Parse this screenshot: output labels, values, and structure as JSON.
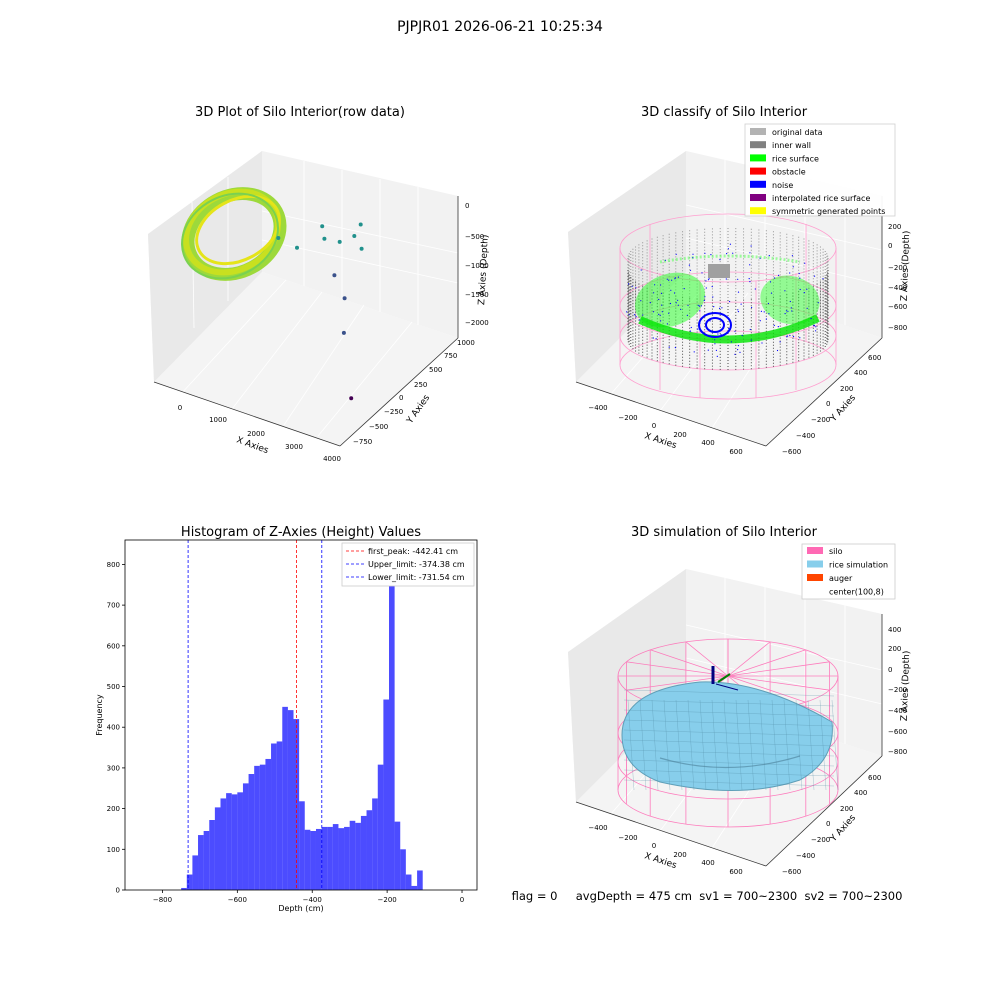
{
  "figure": {
    "suptitle": "PJPJR01 2026-06-21 10:25:34",
    "status_line": "flag = 0     avgDepth = 475 cm  sv1 = 700~2300  sv2 = 700~2300"
  },
  "chart_data": [
    {
      "type": "scatter",
      "title": "3D Plot of Silo Interior(row data)",
      "xlabel": "X Axies",
      "ylabel": "Y Axies",
      "zlabel": "Z Axies (Depth)",
      "x_ticks": [
        "0",
        "1000",
        "2000",
        "3000",
        "4000"
      ],
      "y_ticks": [
        "−750",
        "−500",
        "−250",
        "0",
        "250",
        "500",
        "750",
        "1000"
      ],
      "z_ticks": [
        "0",
        "−500",
        "−1000",
        "−1500",
        "−2000"
      ],
      "xlim": [
        -400,
        4100
      ],
      "ylim": [
        -800,
        1050
      ],
      "zlim": [
        -2350,
        150
      ],
      "colormap": [
        "#440154",
        "#3b528b",
        "#21918c",
        "#5ec962",
        "#fde725"
      ],
      "points": [
        {
          "x": 3600,
          "y": -300,
          "z": -2150
        },
        {
          "x": 2650,
          "y": 200,
          "z": -1750
        },
        {
          "x": 2050,
          "y": 600,
          "z": -1700
        },
        {
          "x": 1650,
          "y": 700,
          "z": -1500
        },
        {
          "x": 1100,
          "y": 900,
          "z": -1200
        },
        {
          "x": 1900,
          "y": 850,
          "z": -900
        },
        {
          "x": 1700,
          "y": 750,
          "z": -950
        },
        {
          "x": 2000,
          "y": 900,
          "z": -1150
        },
        {
          "x": 900,
          "y": 600,
          "z": -1100
        },
        {
          "x": 1200,
          "y": 800,
          "z": -850
        },
        {
          "x": 1900,
          "y": 950,
          "z": -800
        },
        {
          "x": 600,
          "y": 500,
          "z": -900
        }
      ]
    },
    {
      "type": "scatter",
      "title": "3D classify of Silo Interior",
      "xlabel": "X Axies",
      "ylabel": "Y Axies",
      "zlabel": "Z Axies (Depth)",
      "x_ticks": [
        "−400",
        "−200",
        "0",
        "200",
        "400",
        "600"
      ],
      "y_ticks": [
        "−600",
        "−400",
        "−200",
        "0",
        "200",
        "400",
        "600"
      ],
      "z_ticks": [
        "200",
        "0",
        "−200",
        "−400",
        "−600",
        "−800"
      ],
      "legend": [
        {
          "label": "original data",
          "color": "#b3b3b3"
        },
        {
          "label": "inner wall",
          "color": "#808080"
        },
        {
          "label": "rice surface",
          "color": "#00ff00"
        },
        {
          "label": "obstacle",
          "color": "#ff0000"
        },
        {
          "label": "noise",
          "color": "#0000ff"
        },
        {
          "label": "interpolated rice surface",
          "color": "#800080"
        },
        {
          "label": "symmetric generated points",
          "color": "#ffff00"
        }
      ]
    },
    {
      "type": "bar",
      "title": "Histogram of Z-Axies (Height) Values",
      "xlabel": "Depth (cm)",
      "ylabel": "Frequency",
      "xlim": [
        -900,
        40
      ],
      "ylim": [
        0,
        860
      ],
      "x_ticks": [
        -800,
        -600,
        -400,
        -200,
        0
      ],
      "x_tick_labels": [
        "−800",
        "−600",
        "−400",
        "−200",
        "0"
      ],
      "y_ticks": [
        0,
        100,
        200,
        300,
        400,
        500,
        600,
        700,
        800
      ],
      "bar_color": "#0000ff",
      "bin_start": -750,
      "bin_width": 15,
      "values": [
        5,
        38,
        85,
        135,
        145,
        172,
        203,
        225,
        238,
        235,
        240,
        262,
        285,
        305,
        308,
        322,
        360,
        365,
        450,
        442,
        420,
        218,
        148,
        145,
        150,
        155,
        155,
        162,
        152,
        155,
        170,
        165,
        182,
        196,
        225,
        308,
        468,
        808,
        168,
        100,
        38,
        10,
        48
      ],
      "vlines": [
        {
          "label": "first_peak: -442.41 cm",
          "x": -442.41,
          "color": "#ff0000"
        },
        {
          "label": "Upper_limit: -374.38 cm",
          "x": -374.38,
          "color": "#0000ff"
        },
        {
          "label": "Lower_limit: -731.54 cm",
          "x": -731.54,
          "color": "#0000ff"
        }
      ]
    },
    {
      "type": "area",
      "title": "3D simulation of Silo Interior",
      "xlabel": "X Axies",
      "ylabel": "Y Axies",
      "zlabel": "Z Axies (Depth)",
      "x_ticks": [
        "−400",
        "−200",
        "0",
        "200",
        "400",
        "600"
      ],
      "y_ticks": [
        "−600",
        "−400",
        "−200",
        "0",
        "200",
        "400",
        "600"
      ],
      "z_ticks": [
        "400",
        "200",
        "0",
        "−200",
        "−400",
        "−600",
        "−800"
      ],
      "legend": [
        {
          "label": "silo",
          "color": "#ff69b4"
        },
        {
          "label": "rice simulation",
          "color": "#87ceeb"
        },
        {
          "label": "auger",
          "color": "#ff4500"
        },
        {
          "label": "center(100,8)",
          "color": ""
        }
      ]
    }
  ]
}
